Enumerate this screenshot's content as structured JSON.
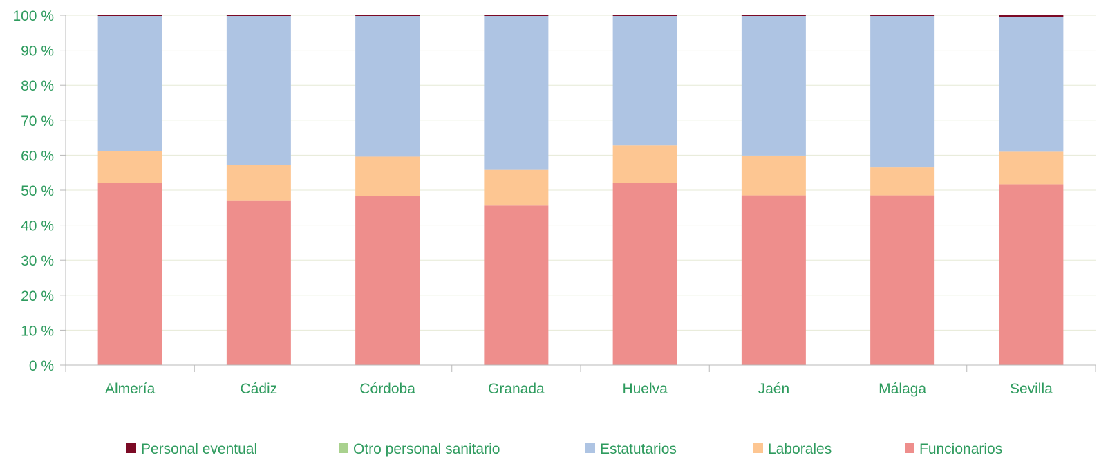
{
  "colors": {
    "text": "#2e9b5e",
    "grid": "#e6ead6",
    "axis": "#b8b8b8"
  },
  "chart_data": {
    "type": "bar",
    "stacked": true,
    "categories": [
      "Almería",
      "Cádiz",
      "Córdoba",
      "Granada",
      "Huelva",
      "Jaén",
      "Málaga",
      "Sevilla"
    ],
    "ylim": [
      0,
      100
    ],
    "yticks": [
      0,
      10,
      20,
      30,
      40,
      50,
      60,
      70,
      80,
      90,
      100
    ],
    "ytick_labels": [
      "0 %",
      "10 %",
      "20 %",
      "30 %",
      "40 %",
      "50 %",
      "60 %",
      "70 %",
      "80 %",
      "90 %",
      "100 %"
    ],
    "grid": true,
    "legend_position": "bottom",
    "series": [
      {
        "name": "Funcionarios",
        "color": "#ee8e8c",
        "values": [
          52.0,
          47.1,
          48.3,
          45.6,
          52.0,
          48.5,
          48.5,
          51.7
        ]
      },
      {
        "name": "Laborales",
        "color": "#fdc692",
        "values": [
          9.2,
          10.2,
          11.3,
          10.2,
          10.8,
          11.4,
          8.0,
          9.3
        ]
      },
      {
        "name": "Estatutarios",
        "color": "#aec4e3",
        "values": [
          38.6,
          42.5,
          40.2,
          44.0,
          37.0,
          39.9,
          43.3,
          38.5
        ]
      },
      {
        "name": "Otro personal sanitario",
        "color": "#a9d18e",
        "values": [
          0.0,
          0.0,
          0.0,
          0.0,
          0.0,
          0.0,
          0.0,
          0.0
        ]
      },
      {
        "name": "Personal eventual",
        "color": "#7b0a25",
        "values": [
          0.2,
          0.2,
          0.2,
          0.2,
          0.2,
          0.2,
          0.2,
          0.5
        ]
      }
    ],
    "legend_order": [
      "Personal eventual",
      "Otro personal sanitario",
      "Estatutarios",
      "Laborales",
      "Funcionarios"
    ]
  }
}
